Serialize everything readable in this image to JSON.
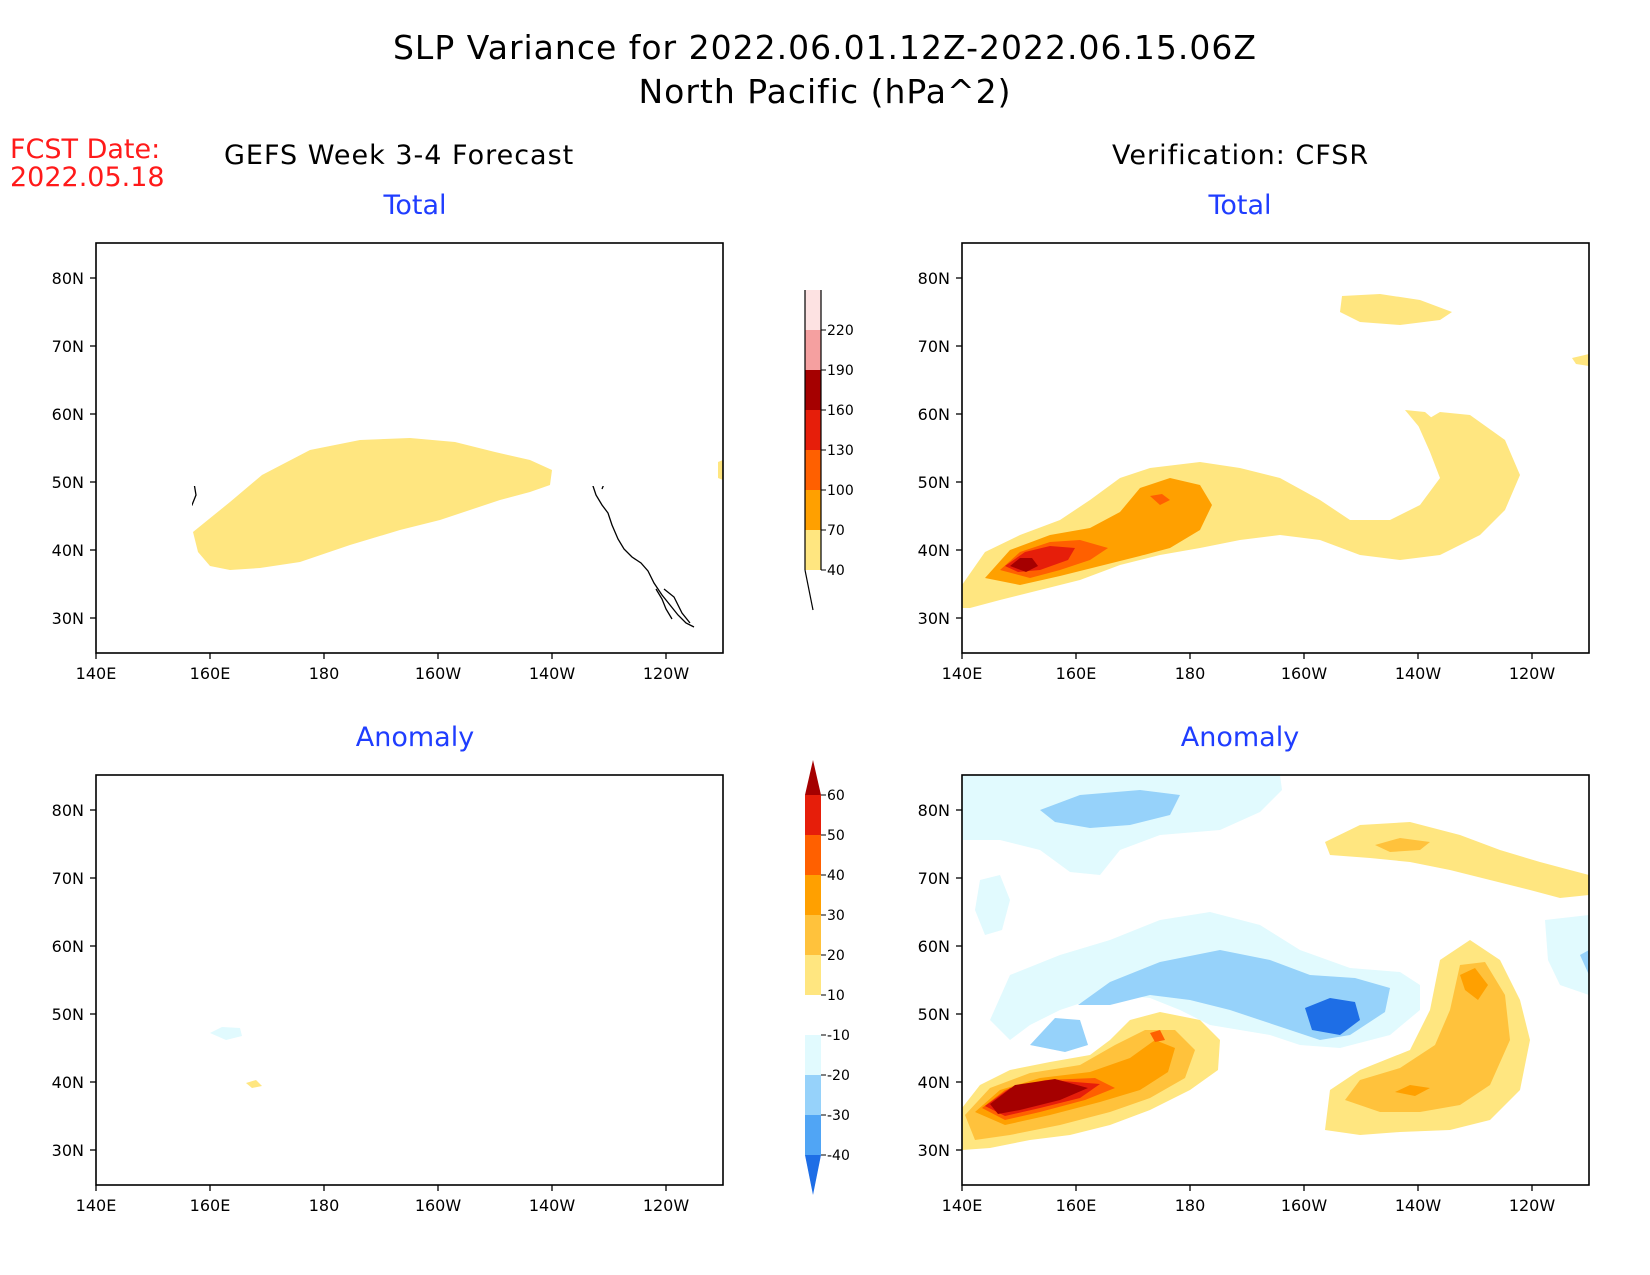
{
  "header": {
    "title_line1": "SLP Variance for 2022.06.01.12Z-2022.06.15.06Z",
    "title_line2": "North Pacific (hPa^2)"
  },
  "fcst": {
    "label": "FCST Date:",
    "date": "2022.05.18"
  },
  "columns": {
    "left": "GEFS Week 3-4 Forecast",
    "right": "Verification: CFSR"
  },
  "panels": [
    {
      "id": "gefs-total",
      "subtitle": "Total"
    },
    {
      "id": "cfsr-total",
      "subtitle": "Total"
    },
    {
      "id": "gefs-anomaly",
      "subtitle": "Anomaly"
    },
    {
      "id": "cfsr-anomaly",
      "subtitle": "Anomaly"
    }
  ],
  "axes": {
    "lat_labels": [
      "80N",
      "70N",
      "60N",
      "50N",
      "40N",
      "30N"
    ],
    "lon_labels": [
      "140E",
      "160E",
      "180",
      "160W",
      "140W",
      "120W"
    ]
  },
  "colorbars": {
    "total": {
      "levels": [
        "40",
        "70",
        "100",
        "130",
        "160",
        "190",
        "220"
      ],
      "colors": [
        "#ffe680",
        "#ffa000",
        "#ff6000",
        "#e61e0a",
        "#a50000",
        "#f5a0a0",
        "#fde2e2"
      ]
    },
    "anomaly": {
      "levels": [
        "60",
        "50",
        "40",
        "30",
        "20",
        "10",
        "-10",
        "-20",
        "-30",
        "-40"
      ],
      "colors": [
        "#a50000",
        "#e61e0a",
        "#ff6000",
        "#ffa000",
        "#ffc23c",
        "#ffe680",
        "#ffffff",
        "#e1fafe",
        "#96d2fa",
        "#50a5f5",
        "#1e6ee6"
      ]
    }
  },
  "chart_data": {
    "type": "heatmap",
    "map_region": "North Pacific",
    "units": "hPa^2",
    "fields": [
      {
        "panel": "gefs-total",
        "features": [
          {
            "level": "40-70",
            "center_lon": "170W",
            "center_lat": "47N",
            "color": "#ffe680"
          }
        ]
      },
      {
        "panel": "cfsr-total",
        "features": [
          {
            "level": "40-70",
            "region": "broad band 145E-125W, 35-55N",
            "color": "#ffe680"
          },
          {
            "level": "70-100",
            "center_lon": "175E",
            "center_lat": "42N",
            "color": "#ffa000"
          },
          {
            "level": "100-130",
            "center_lon": "155E",
            "center_lat": "39N",
            "color": "#ff6000"
          },
          {
            "level": "130-160",
            "center_lon": "153E",
            "center_lat": "38N",
            "color": "#e61e0a"
          },
          {
            "level": "160-190",
            "center_lon": "151E",
            "center_lat": "38N",
            "color": "#a50000"
          }
        ]
      },
      {
        "panel": "gefs-anomaly",
        "features": [
          {
            "level": "-20 to -10",
            "center_lon": "160E",
            "center_lat": "48N",
            "color": "#e1fafe"
          },
          {
            "level": "10 to 20",
            "center_lon": "168E",
            "center_lat": "40N",
            "color": "#ffe680"
          }
        ]
      },
      {
        "panel": "cfsr-anomaly",
        "features": [
          {
            "level": "50-60+",
            "center_lon": "153E",
            "center_lat": "38N",
            "color": "#a50000"
          },
          {
            "level": "20-40",
            "center_lon": "135W",
            "center_lat": "42N",
            "color": "#ffc23c"
          },
          {
            "level": "-40 to -30",
            "center_lon": "156W",
            "center_lat": "50N",
            "color": "#1e6ee6"
          },
          {
            "level": "-30 to -20",
            "center_lon": "175W",
            "center_lat": "52N",
            "color": "#96d2fa"
          }
        ]
      }
    ]
  }
}
